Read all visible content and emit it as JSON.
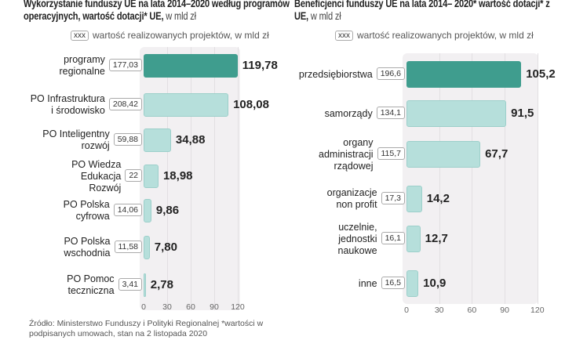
{
  "chart_data": [
    {
      "type": "bar",
      "title": "Wykorzystanie funduszy UE na lata 2014–2020 według programów operacyjnych, wartość dotacji* UE,",
      "unit": "w mld zł",
      "legend_box": "xxx",
      "legend_text": "wartość realizowanych projektów, w mld zł",
      "categories": [
        "programy regionalne",
        "PO Infrastruktura i środowisko",
        "PO Inteligentny rozwój",
        "PO Wiedza Edukacja Rozwój",
        "PO Polska cyfrowa",
        "PO Polska wschodnia",
        "PO Pomoc teczniczna"
      ],
      "category_lines": [
        [
          "programy",
          "regionalne"
        ],
        [
          "PO Infrastruktura",
          "i środowisko"
        ],
        [
          "PO Inteligentny",
          "rozwój"
        ],
        [
          "PO Wiedza",
          "Edukacja",
          "Rozwój"
        ],
        [
          "PO Polska",
          "cyfrowa"
        ],
        [
          "PO Polska",
          "wschodnia"
        ],
        [
          "PO Pomoc",
          "teczniczna"
        ]
      ],
      "values": [
        119.78,
        108.08,
        34.88,
        18.98,
        9.86,
        7.8,
        2.78
      ],
      "value_labels": [
        "119,78",
        "108,08",
        "34,88",
        "18,98",
        "9,86",
        "7,80",
        "2,78"
      ],
      "project_values": [
        "177,03",
        "208,42",
        "59,88",
        "22",
        "14,06",
        "11,58",
        "3,41"
      ],
      "xlim": [
        0,
        120
      ],
      "ticks": [
        "0",
        "30",
        "60",
        "90",
        "120"
      ],
      "tick_values": [
        0,
        30,
        60,
        90,
        120
      ]
    },
    {
      "type": "bar",
      "title": "Beneficjenci funduszy UE na lata 2014– 2020* wartość dotacji* z UE,",
      "unit": "w mld zł",
      "legend_box": "xxx",
      "legend_text": "wartość realizowanych projektów, w mld zł",
      "categories": [
        "przedsiębiorstwa",
        "samorządy",
        "organy administracji rządowej",
        "organizacje non profit",
        "uczelnie, jednostki naukowe",
        "inne"
      ],
      "category_lines": [
        [
          "przedsiębiorstwa"
        ],
        [
          "samorządy"
        ],
        [
          "organy",
          "administracji",
          "rządowej"
        ],
        [
          "organizacje",
          "non profit"
        ],
        [
          "uczelnie,",
          "jednostki",
          "naukowe"
        ],
        [
          "inne"
        ]
      ],
      "values": [
        105.2,
        91.5,
        67.7,
        14.2,
        12.7,
        10.9
      ],
      "value_labels": [
        "105,2",
        "91,5",
        "67,7",
        "14,2",
        "12,7",
        "10,9"
      ],
      "project_values": [
        "196,6",
        "134,1",
        "115,7",
        "17,3",
        "16,1",
        "16,5"
      ],
      "xlim": [
        0,
        120
      ],
      "ticks": [
        "0",
        "30",
        "60",
        "90",
        "120"
      ],
      "tick_values": [
        0,
        30,
        60,
        90,
        120
      ]
    }
  ],
  "colors": {
    "highlight": "#3f9d8e",
    "bar": "#b6dfdb"
  },
  "source": "Źródło: Ministerstwo Funduszy i Polityki Regionalnej  *wartości w podpisanych umowach, stan na 2 listopada 2020"
}
